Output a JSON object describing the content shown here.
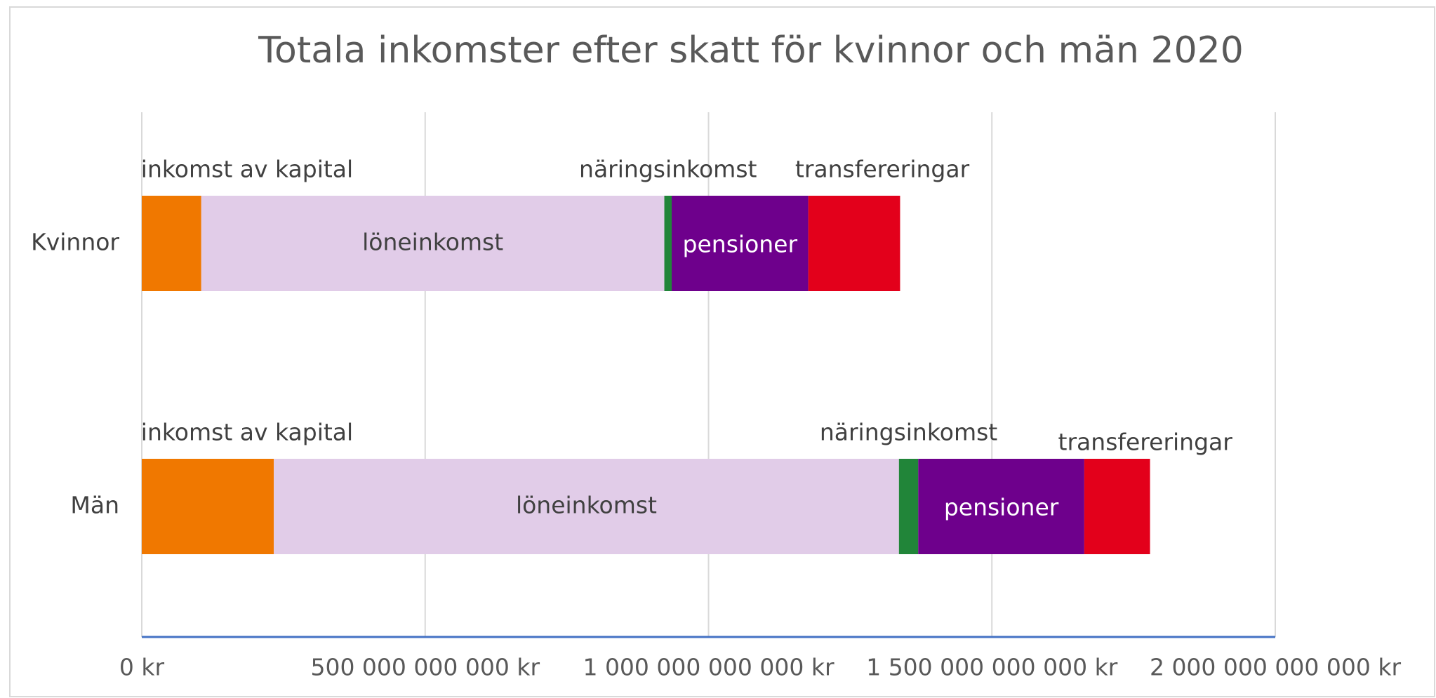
{
  "chart_data": {
    "type": "stacked-bar-horizontal",
    "title": "Totala inkomster efter skatt för kvinnor och män 2020",
    "categories": [
      "Kvinnor",
      "Män"
    ],
    "series": [
      {
        "name": "inkomst av kapital",
        "color": "#f07800",
        "values": [
          105000000000,
          233000000000
        ]
      },
      {
        "name": "löneinkomst",
        "color": "#e1cce8",
        "values": [
          817000000000,
          1103000000000
        ]
      },
      {
        "name": "näringsinkomst",
        "color": "#218539",
        "values": [
          13000000000,
          34000000000
        ]
      },
      {
        "name": "pensioner",
        "color": "#6e008c",
        "values": [
          241000000000,
          293000000000
        ]
      },
      {
        "name": "transfereringar",
        "color": "#e3001b",
        "values": [
          162000000000,
          116000000000
        ]
      }
    ],
    "xlim": [
      0,
      2000000000000
    ],
    "xticks": [
      {
        "value": 0,
        "label": "0 kr"
      },
      {
        "value": 500000000000,
        "label": "500 000 000 000 kr"
      },
      {
        "value": 1000000000000,
        "label": "1 000 000 000 000 kr"
      },
      {
        "value": 1500000000000,
        "label": "1 500 000 000 000 kr"
      },
      {
        "value": 2000000000000,
        "label": "2 000 000 000 000 kr"
      }
    ],
    "grid": true
  }
}
